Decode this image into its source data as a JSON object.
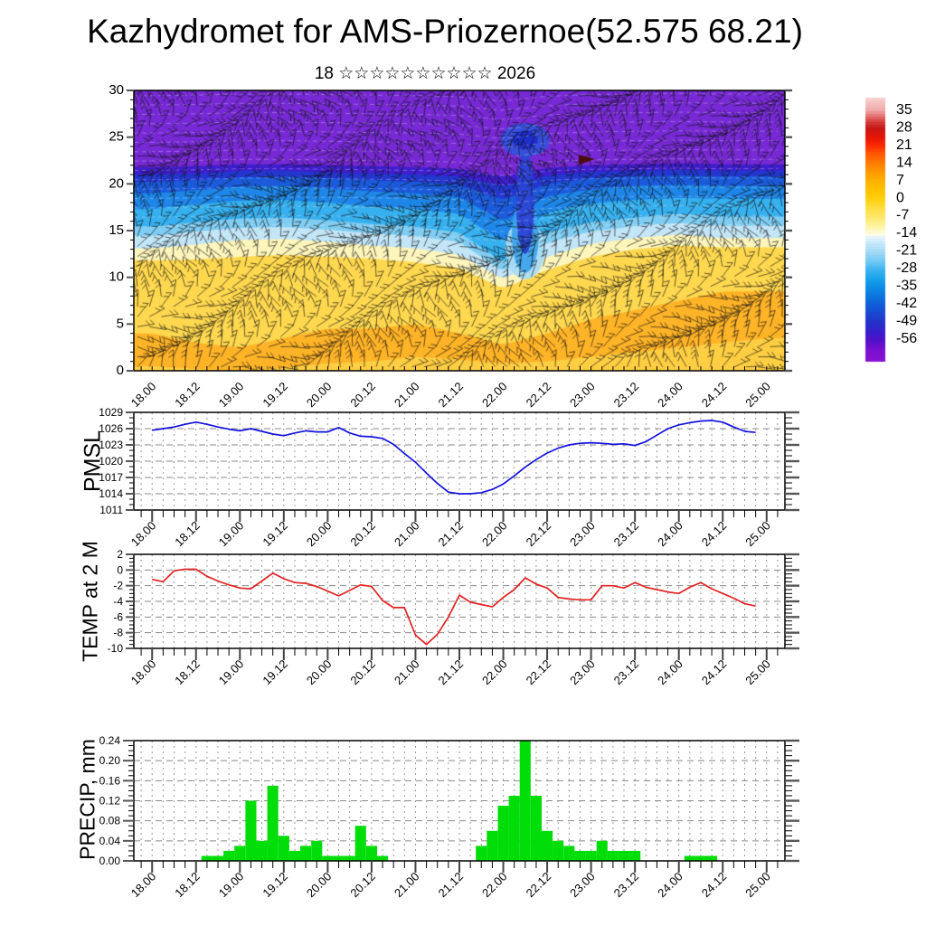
{
  "title": "Kazhydromet for AMS-Priozernoe(52.575 68.21)",
  "subtitle": "18 ☆☆☆☆☆☆☆☆☆☆ 2026",
  "x_axis": {
    "tick_labels": [
      "18.00",
      "18.12",
      "19.00",
      "19.12",
      "20.00",
      "20.12",
      "21.00",
      "21.12",
      "22.00",
      "22.12",
      "23.00",
      "23.12",
      "24.00",
      "24.12",
      "25.00"
    ],
    "major_step_hours": 12,
    "minor_step_hours": 3
  },
  "colorbar": {
    "tick_labels": [
      "35",
      "28",
      "21",
      "14",
      "7",
      "0",
      "-7",
      "-14",
      "-21",
      "-28",
      "-35",
      "-42",
      "-49",
      "-56"
    ],
    "stops": [
      {
        "v": 40,
        "c": "#f8d2d2"
      },
      {
        "v": 35,
        "c": "#f0a8a8"
      },
      {
        "v": 31,
        "c": "#d94848"
      },
      {
        "v": 28,
        "c": "#c51515"
      },
      {
        "v": 24,
        "c": "#e81505"
      },
      {
        "v": 21,
        "c": "#fb2a00"
      },
      {
        "v": 18,
        "c": "#ff5500"
      },
      {
        "v": 14,
        "c": "#ff7d00"
      },
      {
        "v": 10,
        "c": "#ff9d00"
      },
      {
        "v": 7,
        "c": "#ffb200"
      },
      {
        "v": 3,
        "c": "#ffc400"
      },
      {
        "v": 0,
        "c": "#ffcf10"
      },
      {
        "v": -4,
        "c": "#ffdf45"
      },
      {
        "v": -7,
        "c": "#ffe768"
      },
      {
        "v": -11,
        "c": "#fdf4a5"
      },
      {
        "v": -14,
        "c": "#fffde2"
      },
      {
        "v": -15,
        "c": "#e8f4fb"
      },
      {
        "v": -18,
        "c": "#c2e6f8"
      },
      {
        "v": -21,
        "c": "#a2daf7"
      },
      {
        "v": -25,
        "c": "#6cc8f3"
      },
      {
        "v": -28,
        "c": "#3eb4f0"
      },
      {
        "v": -32,
        "c": "#16a0ea"
      },
      {
        "v": -35,
        "c": "#0d8ce6"
      },
      {
        "v": -39,
        "c": "#0b72dc"
      },
      {
        "v": -42,
        "c": "#105cd6"
      },
      {
        "v": -46,
        "c": "#1b44cf"
      },
      {
        "v": -49,
        "c": "#2531c9"
      },
      {
        "v": -53,
        "c": "#3a1cca"
      },
      {
        "v": -56,
        "c": "#4f12c9"
      },
      {
        "v": -60,
        "c": "#7c10d0"
      },
      {
        "v": -66,
        "c": "#8b11d4"
      }
    ]
  },
  "chart_data": [
    {
      "name": "temperature-height-cross-section",
      "type": "heatmap",
      "x_start": "18.00",
      "x_end": "25.00",
      "ylim": [
        0,
        30
      ],
      "yticks": [
        "30",
        "25",
        "20",
        "15",
        "10",
        "5",
        "0"
      ],
      "ytick_values": [
        30,
        25,
        20,
        15,
        10,
        5,
        0
      ],
      "band_time_step_hours": 12,
      "background_top_color": "#7629d4",
      "wind_barbs": "dense decorative wind-barb field",
      "bands": [
        {
          "color": "#ffce42",
          "top_km": [
            0.5,
            0.2,
            0.0,
            0.3,
            0.8,
            1.0,
            1.5,
            1.2,
            0.8,
            1.0,
            1.5,
            2.0,
            2.5,
            3.0,
            3.5
          ]
        },
        {
          "color": "#ffb327",
          "top_km": [
            4.0,
            3.0,
            2.5,
            3.5,
            4.5,
            4.5,
            5.0,
            4.0,
            2.8,
            4.0,
            5.5,
            6.5,
            7.5,
            8.5,
            8.5
          ]
        },
        {
          "color": "#ffd84f",
          "top_km": [
            11.8,
            11.9,
            12.2,
            12.4,
            12.2,
            12.0,
            11.6,
            11.0,
            8.8,
            10.8,
            12.2,
            13.0,
            13.4,
            13.2,
            13.2
          ]
        },
        {
          "color": "#fdf5bb",
          "top_km": [
            13.1,
            13.5,
            14.0,
            14.1,
            13.8,
            13.4,
            13.1,
            12.4,
            9.8,
            12.2,
            13.6,
            14.2,
            14.6,
            14.2,
            14.2
          ]
        },
        {
          "color": "#c2e5f7",
          "top_km": [
            14.4,
            14.9,
            15.3,
            15.4,
            15.1,
            14.7,
            14.4,
            13.8,
            10.6,
            13.7,
            14.9,
            15.5,
            15.8,
            15.5,
            15.5
          ]
        },
        {
          "color": "#7fcdf3",
          "top_km": [
            15.4,
            15.9,
            16.3,
            16.4,
            16.1,
            15.7,
            15.4,
            14.8,
            11.6,
            14.8,
            15.9,
            16.4,
            16.8,
            16.5,
            16.5
          ]
        },
        {
          "color": "#36b0ef",
          "top_km": [
            17.3,
            17.8,
            18.2,
            18.3,
            18.0,
            17.6,
            17.3,
            16.8,
            13.8,
            16.9,
            17.9,
            18.3,
            18.5,
            18.4,
            18.4
          ]
        },
        {
          "color": "#1e86e8",
          "top_km": [
            19.0,
            19.3,
            19.7,
            19.8,
            19.5,
            19.2,
            19.0,
            18.6,
            16.0,
            18.7,
            19.4,
            19.8,
            19.9,
            19.8,
            19.8
          ]
        },
        {
          "color": "#1b5bdb",
          "top_km": [
            20.2,
            20.4,
            20.7,
            20.8,
            20.6,
            20.4,
            20.2,
            19.9,
            18.3,
            20.0,
            20.6,
            20.8,
            20.9,
            20.8,
            20.8
          ]
        },
        {
          "color": "#2337cf",
          "top_km": [
            21.0,
            21.1,
            21.4,
            21.4,
            21.2,
            21.1,
            21.0,
            20.8,
            19.8,
            20.9,
            21.3,
            21.4,
            21.5,
            21.4,
            21.4
          ]
        },
        {
          "color": "#3f1ecd",
          "top_km": [
            21.8,
            21.9,
            22.1,
            22.1,
            22.0,
            21.9,
            21.8,
            21.6,
            20.8,
            21.7,
            22.0,
            22.1,
            22.2,
            22.1,
            22.1
          ]
        }
      ],
      "features": {
        "cold_plume_center": "22.00",
        "vortex_ellipse_km": 24.7,
        "pennant_marker": "22.10 at 23 km"
      }
    },
    {
      "name": "pmsl",
      "type": "line",
      "ylabel": "PMSL",
      "color": "#1212dd",
      "ylim": [
        1011,
        1029
      ],
      "yticks": [
        "1029",
        "1026",
        "1023",
        "1020",
        "1017",
        "1014",
        "1011"
      ],
      "ytick_values": [
        1029,
        1026,
        1023,
        1020,
        1017,
        1014,
        1011
      ],
      "start": "18.00",
      "step_hours": 3,
      "values": [
        1025.7,
        1026.0,
        1026.3,
        1026.8,
        1027.2,
        1026.8,
        1026.3,
        1025.9,
        1025.6,
        1026.0,
        1025.5,
        1025.0,
        1024.7,
        1025.2,
        1025.6,
        1025.4,
        1025.4,
        1026.2,
        1025.2,
        1024.6,
        1024.5,
        1024.2,
        1023.1,
        1021.4,
        1019.8,
        1017.8,
        1015.9,
        1014.3,
        1014.0,
        1014.0,
        1014.2,
        1014.8,
        1015.8,
        1017.3,
        1018.9,
        1020.3,
        1021.5,
        1022.4,
        1023.0,
        1023.3,
        1023.4,
        1023.3,
        1023.1,
        1023.2,
        1022.9,
        1023.6,
        1024.8,
        1026.0,
        1026.7,
        1027.1,
        1027.4,
        1027.5,
        1027.2,
        1026.3,
        1025.5,
        1025.3
      ]
    },
    {
      "name": "temp-at-2m",
      "type": "line",
      "ylabel": "TEMP at 2 M",
      "color": "#e32222",
      "ylim": [
        -10,
        2
      ],
      "yticks": [
        "2",
        "0",
        "-2",
        "-4",
        "-6",
        "-8",
        "-10"
      ],
      "ytick_values": [
        2,
        0,
        -2,
        -4,
        -6,
        -8,
        -10
      ],
      "start": "18.00",
      "step_hours": 3,
      "values": [
        -1.2,
        -1.5,
        -0.1,
        0.1,
        0.1,
        -0.8,
        -1.4,
        -1.9,
        -2.3,
        -2.4,
        -1.4,
        -0.4,
        -1.1,
        -1.6,
        -1.7,
        -2.1,
        -2.7,
        -3.3,
        -2.6,
        -1.9,
        -2.1,
        -3.9,
        -4.8,
        -4.8,
        -8.3,
        -9.5,
        -8.2,
        -6.0,
        -3.2,
        -4.1,
        -4.4,
        -4.7,
        -3.5,
        -2.5,
        -1.0,
        -1.8,
        -2.3,
        -3.5,
        -3.7,
        -3.8,
        -3.8,
        -2.0,
        -2.0,
        -2.3,
        -1.6,
        -2.2,
        -2.5,
        -2.8,
        -3.0,
        -2.2,
        -1.6,
        -2.4,
        -3.0,
        -3.6,
        -4.3,
        -4.6
      ]
    },
    {
      "name": "precip",
      "type": "bar",
      "ylabel": "PRECIP, mm",
      "color": "#00dd08",
      "ylim": [
        0,
        0.24
      ],
      "yticks": [
        "0.24",
        "0.20",
        "0.16",
        "0.12",
        "0.08",
        "0.04",
        "0.00"
      ],
      "ytick_values": [
        0.24,
        0.2,
        0.16,
        0.12,
        0.08,
        0.04,
        0.0
      ],
      "start": "18.00",
      "step_hours": 3,
      "values": [
        0,
        0,
        0,
        0,
        0,
        0.01,
        0.01,
        0.02,
        0.03,
        0.12,
        0.04,
        0.15,
        0.05,
        0.02,
        0.03,
        0.04,
        0.01,
        0.01,
        0.01,
        0.07,
        0.03,
        0.01,
        0,
        0,
        0,
        0,
        0,
        0,
        0,
        0,
        0.03,
        0.06,
        0.11,
        0.13,
        0.24,
        0.13,
        0.06,
        0.04,
        0.03,
        0.02,
        0.02,
        0.04,
        0.02,
        0.02,
        0.02,
        0,
        0,
        0,
        0,
        0.01,
        0.01,
        0.01,
        0
      ]
    }
  ]
}
